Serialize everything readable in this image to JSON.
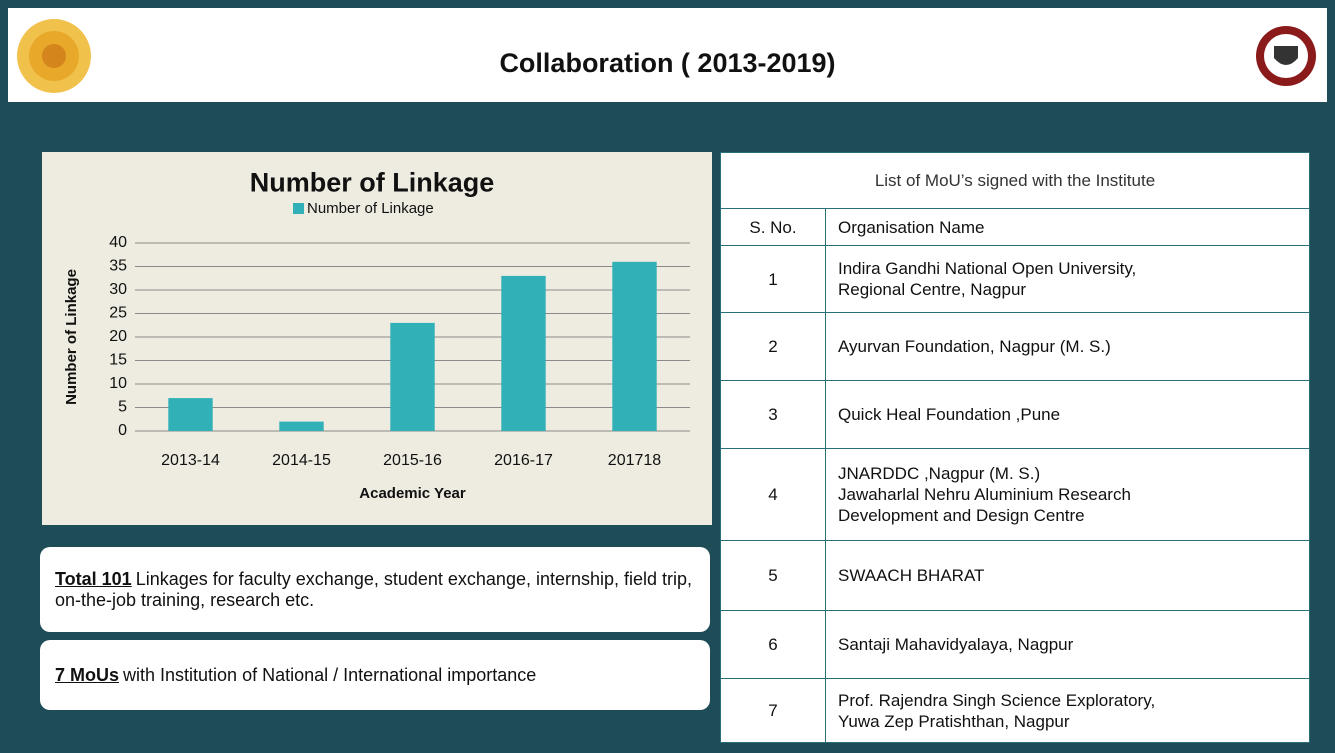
{
  "header": {
    "title": "Collaboration ( 2013-2019)"
  },
  "chart_data": {
    "type": "bar",
    "title": "Number of Linkage",
    "y_label": "Number  of Linkage",
    "x_label": "Academic Year",
    "categories": [
      "2013-14",
      "2014-15",
      "2015-16",
      "2016-17",
      "201718"
    ],
    "series": [
      {
        "name": "Number of Linkage",
        "color": "#31b0b8",
        "values": [
          7,
          2,
          23,
          33,
          36
        ]
      }
    ],
    "ylim": [
      0,
      40
    ],
    "yticks": [
      0,
      5,
      10,
      15,
      20,
      25,
      30,
      35,
      40
    ],
    "grid": true,
    "legend": "top"
  },
  "notes": [
    {
      "highlight": "Total 101",
      "text": "Linkages for faculty exchange, student exchange, internship, field trip, on-the-job training, research etc."
    },
    {
      "highlight": "7 MoUs",
      "text": "with Institution of National / International importance"
    }
  ],
  "table": {
    "title": "List of MoU’s signed with the Institute",
    "columns": [
      "S. No.",
      "Organisation Name"
    ],
    "rows": [
      [
        "1",
        "Indira Gandhi National Open University,\nRegional Centre, Nagpur"
      ],
      [
        "2",
        "Ayurvan Foundation, Nagpur (M. S.)"
      ],
      [
        "3",
        "Quick Heal Foundation ,Pune"
      ],
      [
        "4",
        "JNARDDC ,Nagpur (M. S.)\nJawaharlal Nehru Aluminium Research\nDevelopment and Design Centre"
      ],
      [
        "5",
        "SWAACH BHARAT"
      ],
      [
        "6",
        "Santaji Mahavidyalaya, Nagpur"
      ],
      [
        "7",
        "Prof. Rajendra Singh Science Exploratory,\n Yuwa Zep Pratishthan, Nagpur"
      ]
    ]
  }
}
